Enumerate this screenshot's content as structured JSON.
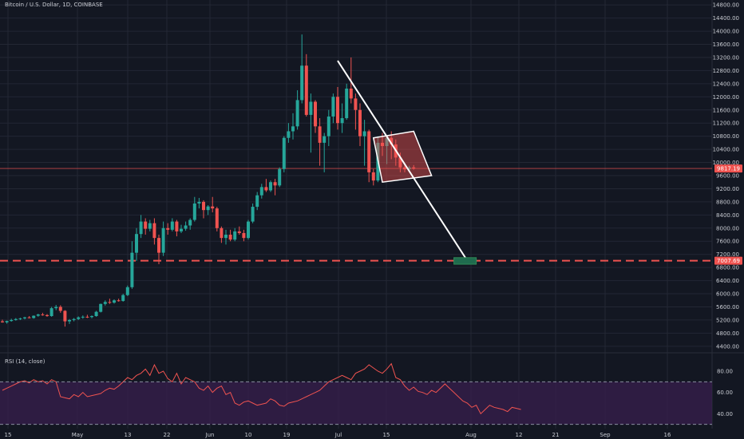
{
  "header": {
    "symbol": "Bitcoin / U.S. Dollar, 1D, COINBASE",
    "rsi": "RSI (14, close)"
  },
  "colors": {
    "background": "#131722",
    "grid": "#232734",
    "up": "#26a69a",
    "down": "#ef5350",
    "axis_text": "#c9ccd3",
    "dashed_level": "#ef5350",
    "pattern_fill": "#ef5350",
    "pattern_outline": "#ffffff",
    "projection_line": "#ffffff",
    "target_box": "#1f6b4e",
    "rsi_line": "#ef5350",
    "rsi_band": "#3a2050"
  },
  "chart_data": {
    "type": "candlestick",
    "price_axis": {
      "ticks": [
        4400,
        4800,
        5200,
        5600,
        6000,
        6400,
        6800,
        7200,
        7600,
        8000,
        8400,
        8800,
        9200,
        9600,
        10000,
        10400,
        10800,
        11200,
        11600,
        12000,
        12400,
        12800,
        13200,
        13600,
        14000,
        14400,
        14800
      ],
      "tick_labels": [
        "4400.00",
        "4800.00",
        "5200.00",
        "5600.00",
        "6000.00",
        "6400.00",
        "6800.00",
        "7200.00",
        "7600.00",
        "8000.00",
        "8400.00",
        "8800.00",
        "9200.00",
        "9600.00",
        "10000.00",
        "10400.00",
        "10800.00",
        "11200.00",
        "11600.00",
        "12000.00",
        "12400.00",
        "12800.00",
        "13200.00",
        "13600.00",
        "14000.00",
        "14400.00",
        "14800.00"
      ],
      "range": [
        4250,
        14950
      ]
    },
    "x_axis": {
      "tick_labels": [
        "15",
        "May",
        "13",
        "22",
        "Jun",
        "10",
        "19",
        "Jul",
        "15",
        "Aug",
        "12",
        "21",
        "Sep",
        "16"
      ]
    },
    "current_price_label": "9817.19",
    "current_price": 9817.19,
    "target_price_label": "7007.69",
    "target_price": 7007.69,
    "rsi": {
      "tick_labels": [
        "80.00",
        "60.00",
        "40.00"
      ],
      "ticks": [
        80,
        60,
        40
      ],
      "upper_band": 70,
      "lower_band": 30,
      "range": [
        26,
        95
      ],
      "values": [
        62,
        64,
        66,
        68,
        70,
        71,
        69,
        72,
        70,
        71,
        68,
        72,
        70,
        56,
        55,
        54,
        58,
        56,
        60,
        56,
        57,
        58,
        59,
        62,
        64,
        63,
        66,
        70,
        74,
        72,
        76,
        78,
        82,
        76,
        86,
        78,
        80,
        73,
        70,
        78,
        68,
        74,
        72,
        70,
        64,
        62,
        66,
        60,
        64,
        66,
        58,
        60,
        50,
        48,
        51,
        52,
        50,
        48,
        49,
        50,
        54,
        52,
        48,
        47,
        50,
        51,
        52,
        54,
        56,
        58,
        60,
        62,
        66,
        70,
        72,
        74,
        76,
        74,
        72,
        78,
        80,
        82,
        86,
        83,
        80,
        78,
        82,
        87,
        74,
        72,
        66,
        62,
        65,
        61,
        60,
        58,
        62,
        60,
        64,
        68,
        64,
        60,
        56,
        52,
        50,
        46,
        48,
        40,
        44,
        48,
        46,
        45,
        44,
        42,
        46,
        45,
        44
      ]
    },
    "candles": [
      [
        5160,
        5210,
        5120,
        5130
      ],
      [
        5130,
        5180,
        5090,
        5170
      ],
      [
        5170,
        5240,
        5150,
        5200
      ],
      [
        5200,
        5260,
        5180,
        5230
      ],
      [
        5230,
        5270,
        5200,
        5250
      ],
      [
        5250,
        5300,
        5220,
        5280
      ],
      [
        5280,
        5320,
        5250,
        5260
      ],
      [
        5260,
        5340,
        5240,
        5330
      ],
      [
        5330,
        5390,
        5300,
        5370
      ],
      [
        5370,
        5420,
        5330,
        5350
      ],
      [
        5350,
        5380,
        5300,
        5320
      ],
      [
        5320,
        5600,
        5300,
        5560
      ],
      [
        5560,
        5660,
        5500,
        5600
      ],
      [
        5600,
        5650,
        5420,
        5480
      ],
      [
        5480,
        5500,
        5000,
        5160
      ],
      [
        5160,
        5230,
        5080,
        5200
      ],
      [
        5200,
        5260,
        5160,
        5230
      ],
      [
        5230,
        5310,
        5200,
        5280
      ],
      [
        5280,
        5340,
        5240,
        5300
      ],
      [
        5300,
        5360,
        5260,
        5290
      ],
      [
        5290,
        5340,
        5250,
        5320
      ],
      [
        5320,
        5480,
        5300,
        5450
      ],
      [
        5450,
        5700,
        5430,
        5690
      ],
      [
        5690,
        5800,
        5640,
        5750
      ],
      [
        5750,
        5850,
        5690,
        5730
      ],
      [
        5730,
        5830,
        5700,
        5800
      ],
      [
        5800,
        5850,
        5760,
        5780
      ],
      [
        5780,
        6000,
        5760,
        5960
      ],
      [
        5960,
        6250,
        5930,
        6200
      ],
      [
        6200,
        7600,
        6150,
        7250
      ],
      [
        7250,
        8000,
        7000,
        7820
      ],
      [
        7820,
        8400,
        7700,
        8200
      ],
      [
        8200,
        8300,
        7800,
        7980
      ],
      [
        7980,
        8250,
        7900,
        8150
      ],
      [
        8150,
        8300,
        7500,
        7700
      ],
      [
        7700,
        7800,
        6900,
        7250
      ],
      [
        7250,
        8200,
        7150,
        8000
      ],
      [
        8000,
        8150,
        7800,
        7950
      ],
      [
        7950,
        8300,
        7900,
        8200
      ],
      [
        8200,
        8250,
        7750,
        7900
      ],
      [
        7900,
        8100,
        7850,
        7980
      ],
      [
        7980,
        8200,
        7920,
        8080
      ],
      [
        8080,
        8300,
        7950,
        8250
      ],
      [
        8250,
        8950,
        8200,
        8750
      ],
      [
        8750,
        8920,
        8600,
        8800
      ],
      [
        8800,
        8850,
        8300,
        8550
      ],
      [
        8550,
        8700,
        8400,
        8660
      ],
      [
        8660,
        8950,
        8480,
        8600
      ],
      [
        8600,
        8650,
        7900,
        8000
      ],
      [
        8000,
        8050,
        7550,
        7700
      ],
      [
        7700,
        7950,
        7500,
        7800
      ],
      [
        7800,
        7950,
        7600,
        7650
      ],
      [
        7650,
        8000,
        7600,
        7900
      ],
      [
        7900,
        8050,
        7800,
        7850
      ],
      [
        7850,
        7950,
        7600,
        7700
      ],
      [
        7700,
        8250,
        7650,
        8200
      ],
      [
        8200,
        8750,
        8150,
        8650
      ],
      [
        8650,
        9100,
        8550,
        9000
      ],
      [
        9000,
        9350,
        8900,
        9250
      ],
      [
        9250,
        9500,
        9100,
        9150
      ],
      [
        9150,
        9450,
        9100,
        9400
      ],
      [
        9400,
        9500,
        9000,
        9300
      ],
      [
        9300,
        9850,
        9250,
        9800
      ],
      [
        9800,
        10800,
        9700,
        10750
      ],
      [
        10750,
        11200,
        10600,
        10950
      ],
      [
        10950,
        11500,
        10700,
        11100
      ],
      [
        11100,
        12200,
        11000,
        11900
      ],
      [
        11900,
        13900,
        11800,
        12950
      ],
      [
        12950,
        13300,
        11400,
        11450
      ],
      [
        11450,
        12100,
        10300,
        11850
      ],
      [
        11850,
        11900,
        10900,
        11100
      ],
      [
        11100,
        11350,
        9900,
        10600
      ],
      [
        10600,
        10900,
        9700,
        10800
      ],
      [
        10800,
        11600,
        10500,
        11400
      ],
      [
        11400,
        12100,
        11200,
        12000
      ],
      [
        12000,
        12300,
        11000,
        11200
      ],
      [
        11200,
        11800,
        10900,
        11350
      ],
      [
        11350,
        12400,
        11300,
        12250
      ],
      [
        12250,
        13200,
        11800,
        11950
      ],
      [
        11950,
        12100,
        11000,
        11600
      ],
      [
        11600,
        11800,
        10500,
        10800
      ],
      [
        10800,
        11300,
        9900,
        10950
      ],
      [
        10950,
        11000,
        9400,
        9700
      ],
      [
        9700,
        9800,
        9300,
        9450
      ],
      [
        9450,
        10800,
        9400,
        10600
      ],
      [
        10600,
        10900,
        10200,
        10500
      ],
      [
        10500,
        10800,
        9950,
        10750
      ],
      [
        10750,
        10950,
        10100,
        10550
      ],
      [
        10550,
        10700,
        9900,
        10150
      ],
      [
        10150,
        10300,
        9700,
        9850
      ],
      [
        9850,
        9950,
        9700,
        9790
      ],
      [
        9790,
        9900,
        9700,
        9850
      ],
      [
        9850,
        9920,
        9780,
        9817
      ]
    ],
    "annotations": {
      "pattern_polygon_price_points": [
        [
          83,
          10750
        ],
        [
          92,
          10950
        ],
        [
          96,
          9600
        ],
        [
          85,
          9400
        ]
      ],
      "projection_line": [
        [
          75,
          13100
        ],
        [
          104,
          7007.69
        ]
      ],
      "target_box": [
        [
          101,
          7100
        ],
        [
          106,
          6900
        ]
      ]
    }
  }
}
